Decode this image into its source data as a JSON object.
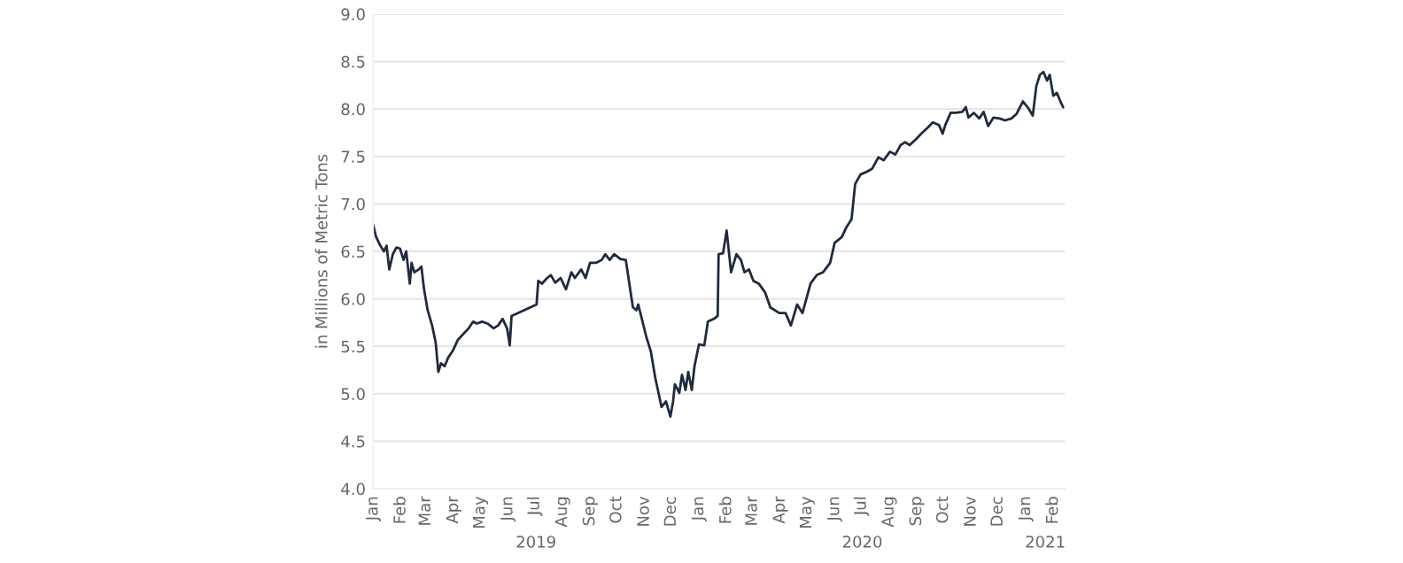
{
  "chart_data": {
    "type": "line",
    "ylabel": "in Millions of Metric Tons",
    "ylim": [
      4.0,
      9.0
    ],
    "yticks": [
      {
        "value": 4.0,
        "label": "4.0"
      },
      {
        "value": 4.5,
        "label": "4.5"
      },
      {
        "value": 5.0,
        "label": "5.0"
      },
      {
        "value": 5.5,
        "label": "5.5"
      },
      {
        "value": 6.0,
        "label": "6.0"
      },
      {
        "value": 6.5,
        "label": "6.5"
      },
      {
        "value": 7.0,
        "label": "7.0"
      },
      {
        "value": 7.5,
        "label": "7.5"
      },
      {
        "value": 8.0,
        "label": "8.0"
      },
      {
        "value": 8.5,
        "label": "8.5"
      },
      {
        "value": 9.0,
        "label": "9.0"
      }
    ],
    "xlim": [
      "2019-01-01",
      "2021-02-14"
    ],
    "xticks": [
      {
        "value": "2019-01-01",
        "label": "Jan"
      },
      {
        "value": "2019-02-01",
        "label": "Feb"
      },
      {
        "value": "2019-03-01",
        "label": "Mar"
      },
      {
        "value": "2019-04-01",
        "label": "Apr"
      },
      {
        "value": "2019-05-01",
        "label": "May"
      },
      {
        "value": "2019-06-01",
        "label": "Jun"
      },
      {
        "value": "2019-07-01",
        "label": "Jul"
      },
      {
        "value": "2019-08-01",
        "label": "Aug"
      },
      {
        "value": "2019-09-01",
        "label": "Sep"
      },
      {
        "value": "2019-10-01",
        "label": "Oct"
      },
      {
        "value": "2019-11-01",
        "label": "Nov"
      },
      {
        "value": "2019-12-01",
        "label": "Dec"
      },
      {
        "value": "2020-01-01",
        "label": "Jan"
      },
      {
        "value": "2020-02-01",
        "label": "Feb"
      },
      {
        "value": "2020-03-01",
        "label": "Mar"
      },
      {
        "value": "2020-04-01",
        "label": "Apr"
      },
      {
        "value": "2020-05-01",
        "label": "May"
      },
      {
        "value": "2020-06-01",
        "label": "Jun"
      },
      {
        "value": "2020-07-01",
        "label": "Jul"
      },
      {
        "value": "2020-08-01",
        "label": "Aug"
      },
      {
        "value": "2020-09-01",
        "label": "Sep"
      },
      {
        "value": "2020-10-01",
        "label": "Oct"
      },
      {
        "value": "2020-11-01",
        "label": "Nov"
      },
      {
        "value": "2020-12-01",
        "label": "Dec"
      },
      {
        "value": "2021-01-01",
        "label": "Jan"
      },
      {
        "value": "2021-02-01",
        "label": "Feb"
      }
    ],
    "annotations": [
      "2019",
      "2020",
      "2021"
    ],
    "grid": "y",
    "marker": "none",
    "line_style": "solid",
    "series": [
      {
        "color": "#1f2a3c",
        "x": [
          "2019-01-01",
          "2019-01-04",
          "2019-01-09",
          "2019-01-13",
          "2019-01-16",
          "2019-01-19",
          "2019-01-23",
          "2019-01-27",
          "2019-01-31",
          "2019-02-04",
          "2019-02-07",
          "2019-02-11",
          "2019-02-13",
          "2019-02-16",
          "2019-02-21",
          "2019-02-24",
          "2019-02-27",
          "2019-03-03",
          "2019-03-08",
          "2019-03-12",
          "2019-03-15",
          "2019-03-18",
          "2019-03-22",
          "2019-03-26",
          "2019-03-31",
          "2019-04-06",
          "2019-04-12",
          "2019-04-18",
          "2019-04-23",
          "2019-04-27",
          "2019-05-03",
          "2019-05-09",
          "2019-05-16",
          "2019-05-21",
          "2019-05-26",
          "2019-05-31",
          "2019-06-03",
          "2019-06-05",
          "2019-06-12",
          "2019-06-19",
          "2019-06-26",
          "2019-07-03",
          "2019-07-05",
          "2019-07-09",
          "2019-07-15",
          "2019-07-19",
          "2019-07-24",
          "2019-07-30",
          "2019-08-05",
          "2019-08-11",
          "2019-08-15",
          "2019-08-22",
          "2019-08-27",
          "2019-09-01",
          "2019-09-08",
          "2019-09-14",
          "2019-09-18",
          "2019-09-23",
          "2019-09-28",
          "2019-10-05",
          "2019-10-11",
          "2019-10-15",
          "2019-10-19",
          "2019-10-23",
          "2019-10-25",
          "2019-10-29",
          "2019-11-03",
          "2019-11-08",
          "2019-11-13",
          "2019-11-16",
          "2019-11-20",
          "2019-11-25",
          "2019-11-30",
          "2019-12-03",
          "2019-12-05",
          "2019-12-10",
          "2019-12-13",
          "2019-12-17",
          "2019-12-20",
          "2019-12-24",
          "2019-12-27",
          "2020-01-01",
          "2020-01-07",
          "2020-01-11",
          "2020-01-18",
          "2020-01-22",
          "2020-01-23",
          "2020-01-28",
          "2020-02-01",
          "2020-02-06",
          "2020-02-12",
          "2020-02-17",
          "2020-02-21",
          "2020-02-26",
          "2020-03-02",
          "2020-03-08",
          "2020-03-15",
          "2020-03-21",
          "2020-03-31",
          "2020-04-07",
          "2020-04-13",
          "2020-04-20",
          "2020-04-26",
          "2020-05-05",
          "2020-05-12",
          "2020-05-19",
          "2020-05-27",
          "2020-06-01",
          "2020-06-09",
          "2020-06-14",
          "2020-06-20",
          "2020-06-24",
          "2020-06-30",
          "2020-07-07",
          "2020-07-13",
          "2020-07-20",
          "2020-07-26",
          "2020-08-02",
          "2020-08-08",
          "2020-08-14",
          "2020-08-19",
          "2020-08-24",
          "2020-08-31",
          "2020-09-06",
          "2020-09-13",
          "2020-09-19",
          "2020-09-26",
          "2020-09-30",
          "2020-10-03",
          "2020-10-09",
          "2020-10-15",
          "2020-10-22",
          "2020-10-26",
          "2020-10-29",
          "2020-11-04",
          "2020-11-10",
          "2020-11-15",
          "2020-11-20",
          "2020-11-26",
          "2020-12-03",
          "2020-12-09",
          "2020-12-16",
          "2020-12-22",
          "2020-12-29",
          "2021-01-04",
          "2021-01-09",
          "2021-01-13",
          "2021-01-17",
          "2021-01-21",
          "2021-01-25",
          "2021-01-28",
          "2021-02-01",
          "2021-02-05",
          "2021-02-09",
          "2021-02-12"
        ],
        "values": [
          6.78,
          6.66,
          6.56,
          6.5,
          6.56,
          6.31,
          6.47,
          6.54,
          6.53,
          6.41,
          6.5,
          6.16,
          6.38,
          6.28,
          6.31,
          6.34,
          6.1,
          5.88,
          5.72,
          5.54,
          5.23,
          5.32,
          5.29,
          5.38,
          5.45,
          5.57,
          5.63,
          5.69,
          5.76,
          5.74,
          5.76,
          5.74,
          5.69,
          5.72,
          5.79,
          5.69,
          5.51,
          5.82,
          5.85,
          5.88,
          5.91,
          5.94,
          6.19,
          6.16,
          6.22,
          6.25,
          6.17,
          6.22,
          6.1,
          6.28,
          6.22,
          6.31,
          6.22,
          6.38,
          6.38,
          6.41,
          6.47,
          6.41,
          6.47,
          6.42,
          6.41,
          6.16,
          5.91,
          5.88,
          5.94,
          5.79,
          5.6,
          5.45,
          5.17,
          5.04,
          4.86,
          4.92,
          4.76,
          4.92,
          5.1,
          5.01,
          5.2,
          5.04,
          5.23,
          5.04,
          5.29,
          5.52,
          5.51,
          5.76,
          5.79,
          5.82,
          6.47,
          6.48,
          6.72,
          6.28,
          6.47,
          6.41,
          6.28,
          6.31,
          6.19,
          6.16,
          6.07,
          5.91,
          5.85,
          5.85,
          5.72,
          5.94,
          5.85,
          6.16,
          6.25,
          6.28,
          6.38,
          6.59,
          6.65,
          6.75,
          6.84,
          7.21,
          7.31,
          7.34,
          7.37,
          7.49,
          7.46,
          7.55,
          7.52,
          7.62,
          7.65,
          7.62,
          7.68,
          7.74,
          7.8,
          7.86,
          7.83,
          7.74,
          7.83,
          7.96,
          7.96,
          7.97,
          8.02,
          7.91,
          7.96,
          7.9,
          7.97,
          7.82,
          7.91,
          7.9,
          7.88,
          7.9,
          7.95,
          8.08,
          8.01,
          7.93,
          8.24,
          8.36,
          8.39,
          8.3,
          8.36,
          8.14,
          8.17,
          8.08,
          8.02
        ]
      }
    ]
  }
}
